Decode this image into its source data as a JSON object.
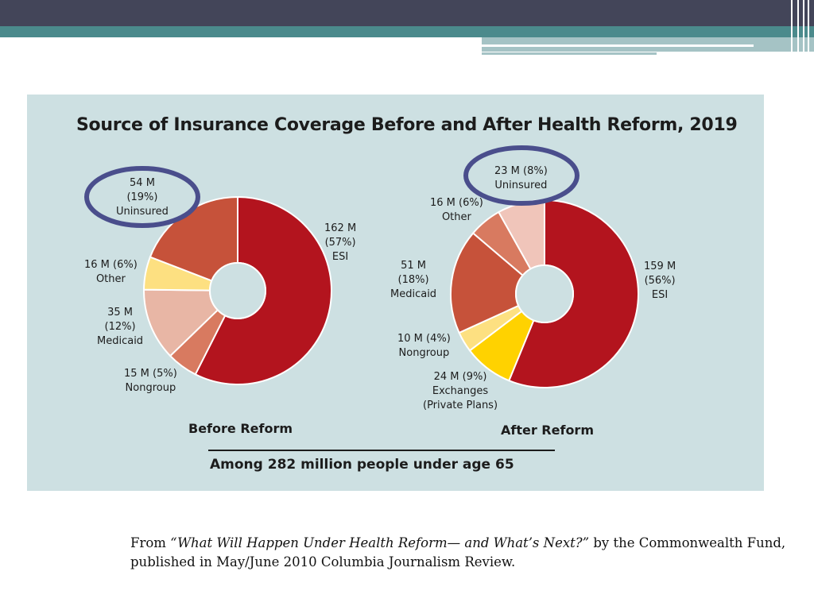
{
  "source": {
    "prefix": "From ",
    "title": "“What Will Happen Under Health Reform— and What’s Next?”",
    "suffix": " by the Commonwealth Fund, published in May/June 2010 Columbia Journalism Review."
  },
  "chart_data": [
    {
      "type": "pie",
      "title": "Source of Insurance Coverage Before and After Health Reform, 2019",
      "subtitle": "",
      "caption": "Before Reform",
      "footnote": "Among 282 million people under age 65",
      "slices": [
        {
          "name": "ESI",
          "value": 162,
          "percent": 57,
          "label": [
            "162 M",
            "(57%)",
            "ESI"
          ],
          "color": "#b3141e"
        },
        {
          "name": "Nongroup",
          "value": 15,
          "percent": 5,
          "label": [
            "15 M (5%)",
            "Nongroup"
          ],
          "color": "#d87a60"
        },
        {
          "name": "Medicaid",
          "value": 35,
          "percent": 12,
          "label": [
            "35 M",
            "(12%)",
            "Medicaid"
          ],
          "color": "#e8b6a5"
        },
        {
          "name": "Other",
          "value": 16,
          "percent": 6,
          "label": [
            "16 M (6%)",
            "Other"
          ],
          "color": "#fde081"
        },
        {
          "name": "Uninsured",
          "value": 54,
          "percent": 19,
          "label": [
            "54 M",
            "(19%)",
            "Uninsured"
          ],
          "color": "#c6523a"
        }
      ],
      "highlight": "Uninsured"
    },
    {
      "type": "pie",
      "caption": "After Reform",
      "slices": [
        {
          "name": "ESI",
          "value": 159,
          "percent": 56,
          "label": [
            "159 M",
            "(56%)",
            "ESI"
          ],
          "color": "#b3141e"
        },
        {
          "name": "Exchanges (Private Plans)",
          "value": 24,
          "percent": 9,
          "label": [
            "24 M (9%)",
            "Exchanges",
            "(Private Plans)"
          ],
          "color": "#ffd200"
        },
        {
          "name": "Nongroup",
          "value": 10,
          "percent": 4,
          "label": [
            "10 M (4%)",
            "Nongroup"
          ],
          "color": "#fde081"
        },
        {
          "name": "Medicaid",
          "value": 51,
          "percent": 18,
          "label": [
            "51 M",
            "(18%)",
            "Medicaid"
          ],
          "color": "#c6523a"
        },
        {
          "name": "Other",
          "value": 16,
          "percent": 6,
          "label": [
            "16 M (6%)",
            "Other"
          ],
          "color": "#d87a60"
        },
        {
          "name": "Uninsured",
          "value": 23,
          "percent": 8,
          "label": [
            "23 M (8%)",
            "Uninsured"
          ],
          "color": "#f0c5ba"
        }
      ],
      "highlight": "Uninsured"
    }
  ],
  "colors": {
    "panel_background": "#cde0e2",
    "highlight_ring": "#4a4e8c",
    "header_dark": "#434559",
    "header_teal": "#4b8a8c"
  }
}
